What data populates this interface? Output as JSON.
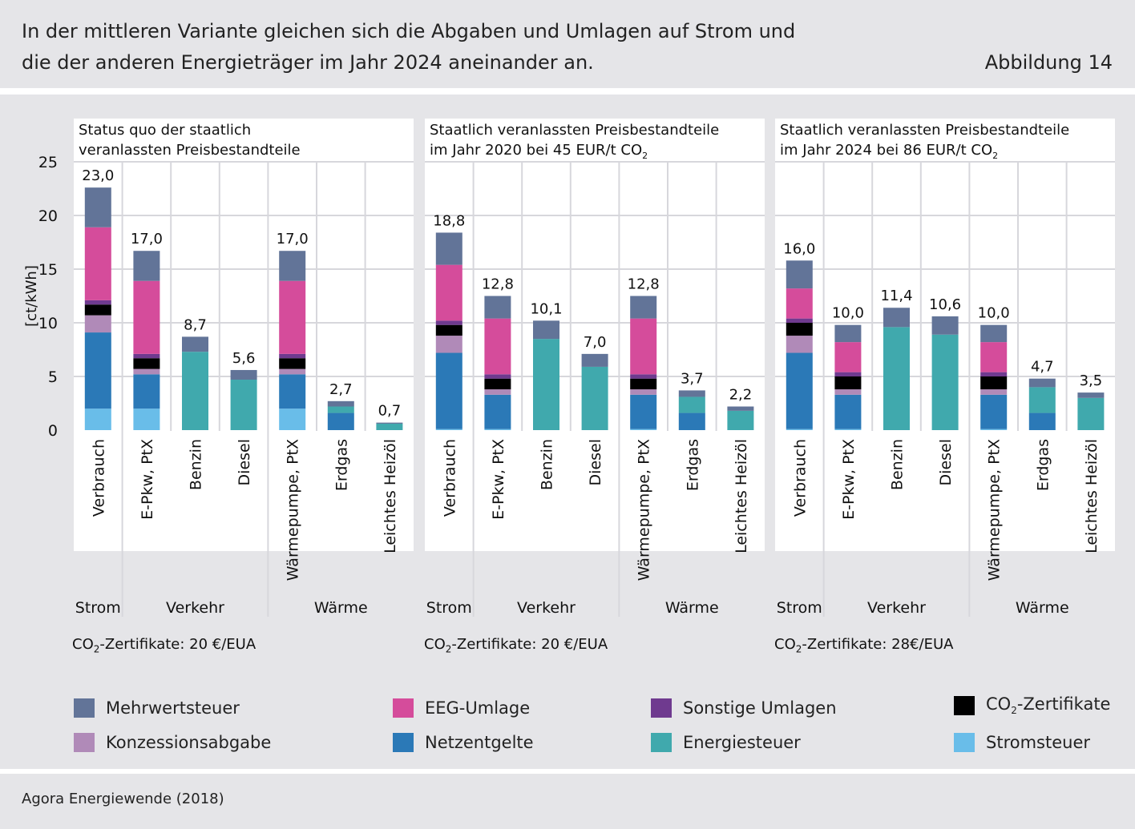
{
  "header": {
    "title_line1": "In der mittleren Variante gleichen sich die Abgaben und Umlagen auf Strom und",
    "title_line2": "die der anderen Energieträger im Jahr 2024 aneinander an.",
    "figure_number": "Abbildung 14"
  },
  "footer": {
    "source": "Agora Energiewende (2018)"
  },
  "legend": [
    {
      "key": "mwst",
      "label": "Mehrwertsteuer",
      "color": "#627498"
    },
    {
      "key": "eeg",
      "label": "EEG-Umlage",
      "color": "#d54c9b"
    },
    {
      "key": "sonst",
      "label": "Sonstige Umlagen",
      "color": "#6f3a8f"
    },
    {
      "key": "co2",
      "label_pre": "CO",
      "label_sub": "2",
      "label_post": "-Zertifikate",
      "color": "#000000"
    },
    {
      "key": "konz",
      "label": "Konzessionsabgabe",
      "color": "#b08ab8"
    },
    {
      "key": "netz",
      "label": "Netzentgelte",
      "color": "#2b79b7"
    },
    {
      "key": "energie",
      "label": "Energiesteuer",
      "color": "#40a9ad"
    },
    {
      "key": "strom",
      "label": "Stromsteuer",
      "color": "#69bde9"
    }
  ],
  "chart_data": [
    {
      "type": "bar",
      "stacked": true,
      "title": "Status quo der staatlich veranlassten Preisbestandteile",
      "ylabel": "[ct/kWh]",
      "ylim": [
        0,
        25
      ],
      "yticks": [
        0,
        5,
        10,
        15,
        20,
        25
      ],
      "grid": true,
      "certificate_pre": "CO",
      "certificate_sub": "2",
      "certificate_post": "-Zertifikate: 20 €/EUA",
      "groups": [
        {
          "label": "Strom",
          "count": 1
        },
        {
          "label": "Verkehr",
          "count": 3
        },
        {
          "label": "Wärme",
          "count": 3
        }
      ],
      "categories": [
        "Verbrauch",
        "E-Pkw, PtX",
        "Benzin",
        "Diesel",
        "Wärmepumpe, PtX",
        "Erdgas",
        "Leichtes Heizöl"
      ],
      "totals": [
        "23,0",
        "17,0",
        "8,7",
        "5,6",
        "17,0",
        "2,7",
        "0,7"
      ],
      "series": [
        {
          "key": "strom",
          "values": [
            2.0,
            2.0,
            0,
            0,
            2.0,
            0,
            0
          ]
        },
        {
          "key": "netz",
          "values": [
            7.1,
            3.2,
            0,
            0,
            3.2,
            1.6,
            0
          ]
        },
        {
          "key": "energie",
          "values": [
            0,
            0,
            7.3,
            4.7,
            0,
            0.6,
            0.6
          ]
        },
        {
          "key": "konz",
          "values": [
            1.6,
            0.5,
            0,
            0,
            0.5,
            0,
            0
          ]
        },
        {
          "key": "co2",
          "values": [
            1.0,
            1.0,
            0,
            0,
            1.0,
            0,
            0
          ]
        },
        {
          "key": "sonst",
          "values": [
            0.4,
            0.4,
            0,
            0,
            0.4,
            0,
            0
          ]
        },
        {
          "key": "eeg",
          "values": [
            6.8,
            6.8,
            0,
            0,
            6.8,
            0,
            0
          ]
        },
        {
          "key": "mwst",
          "values": [
            3.7,
            2.8,
            1.4,
            0.9,
            2.8,
            0.5,
            0.1
          ]
        }
      ]
    },
    {
      "type": "bar",
      "stacked": true,
      "title": "Staatlich veranlassten Preisbestandteile",
      "title2_pre": "im Jahr 2020 bei 45 EUR/t CO",
      "title2_sub": "2",
      "ylim": [
        0,
        25
      ],
      "yticks": [
        0,
        5,
        10,
        15,
        20,
        25
      ],
      "grid": true,
      "certificate_pre": "CO",
      "certificate_sub": "2",
      "certificate_post": "-Zertifikate: 20 €/EUA",
      "groups": [
        {
          "label": "Strom",
          "count": 1
        },
        {
          "label": "Verkehr",
          "count": 3
        },
        {
          "label": "Wärme",
          "count": 3
        }
      ],
      "categories": [
        "Verbrauch",
        "E-Pkw, PtX",
        "Benzin",
        "Diesel",
        "Wärmepumpe, PtX",
        "Erdgas",
        "Leichtes Heizöl"
      ],
      "totals": [
        "18,8",
        "12,8",
        "10,1",
        "7,0",
        "12,8",
        "3,7",
        "2,2"
      ],
      "series": [
        {
          "key": "strom",
          "values": [
            0.1,
            0.1,
            0,
            0,
            0.1,
            0,
            0
          ]
        },
        {
          "key": "netz",
          "values": [
            7.1,
            3.2,
            0,
            0,
            3.2,
            1.6,
            0
          ]
        },
        {
          "key": "energie",
          "values": [
            0,
            0,
            8.5,
            5.9,
            0,
            1.5,
            1.8
          ]
        },
        {
          "key": "konz",
          "values": [
            1.6,
            0.5,
            0,
            0,
            0.5,
            0,
            0
          ]
        },
        {
          "key": "co2",
          "values": [
            1.0,
            1.0,
            0,
            0,
            1.0,
            0,
            0
          ]
        },
        {
          "key": "sonst",
          "values": [
            0.4,
            0.4,
            0,
            0,
            0.4,
            0,
            0
          ]
        },
        {
          "key": "eeg",
          "values": [
            5.2,
            5.2,
            0,
            0,
            5.2,
            0,
            0
          ]
        },
        {
          "key": "mwst",
          "values": [
            3.0,
            2.1,
            1.7,
            1.2,
            2.1,
            0.6,
            0.4
          ]
        }
      ]
    },
    {
      "type": "bar",
      "stacked": true,
      "title": "Staatlich veranlassten Preisbestandteile",
      "title2_pre": "im Jahr 2024 bei 86 EUR/t CO",
      "title2_sub": "2",
      "ylim": [
        0,
        25
      ],
      "yticks": [
        0,
        5,
        10,
        15,
        20,
        25
      ],
      "grid": true,
      "certificate_pre": "CO",
      "certificate_sub": "2",
      "certificate_post": "-Zertifikate: 28€/EUA",
      "groups": [
        {
          "label": "Strom",
          "count": 1
        },
        {
          "label": "Verkehr",
          "count": 3
        },
        {
          "label": "Wärme",
          "count": 3
        }
      ],
      "categories": [
        "Verbrauch",
        "E-Pkw, PtX",
        "Benzin",
        "Diesel",
        "Wärmepumpe, PtX",
        "Erdgas",
        "Leichtes Heizöl"
      ],
      "totals": [
        "16,0",
        "10,0",
        "11,4",
        "10,6",
        "10,0",
        "4,7",
        "3,5"
      ],
      "series": [
        {
          "key": "strom",
          "values": [
            0.1,
            0.1,
            0,
            0,
            0.1,
            0,
            0
          ]
        },
        {
          "key": "netz",
          "values": [
            7.1,
            3.2,
            0,
            0,
            3.2,
            1.6,
            0
          ]
        },
        {
          "key": "energie",
          "values": [
            0,
            0,
            9.6,
            8.9,
            0,
            2.4,
            3.0
          ]
        },
        {
          "key": "konz",
          "values": [
            1.6,
            0.5,
            0,
            0,
            0.5,
            0,
            0
          ]
        },
        {
          "key": "co2",
          "values": [
            1.2,
            1.2,
            0,
            0,
            1.2,
            0,
            0
          ]
        },
        {
          "key": "sonst",
          "values": [
            0.4,
            0.4,
            0,
            0,
            0.4,
            0,
            0
          ]
        },
        {
          "key": "eeg",
          "values": [
            2.8,
            2.8,
            0,
            0,
            2.8,
            0,
            0
          ]
        },
        {
          "key": "mwst",
          "values": [
            2.6,
            1.6,
            1.8,
            1.7,
            1.6,
            0.8,
            0.5
          ]
        }
      ]
    }
  ]
}
